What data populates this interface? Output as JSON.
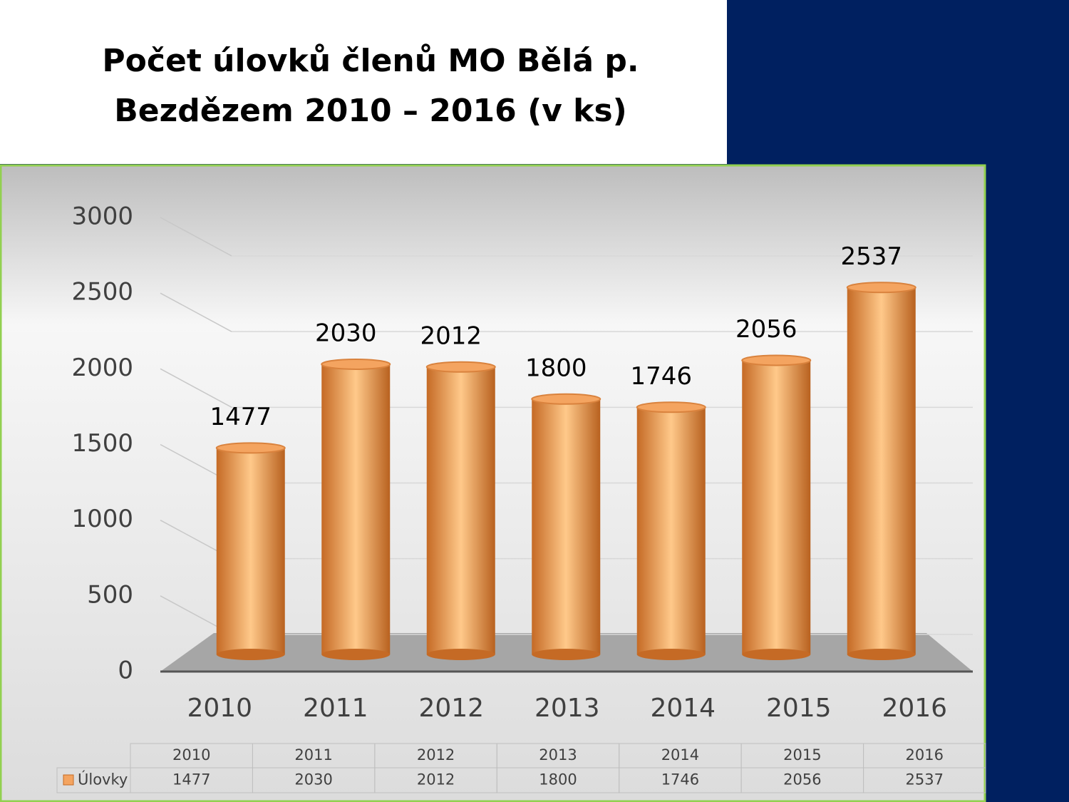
{
  "chart_data": {
    "type": "bar",
    "title": "Počet úlovků členů MO Bělá p. Bezdězem 2010 – 2016 (v ks)",
    "categories": [
      "2010",
      "2011",
      "2012",
      "2013",
      "2014",
      "2015",
      "2016"
    ],
    "series": [
      {
        "name": "Úlovky",
        "color": "#f4a460",
        "values": [
          1477,
          2030,
          2012,
          1800,
          1746,
          2056,
          2537
        ]
      }
    ],
    "ylim": [
      0,
      3000
    ],
    "yticks": [
      0,
      500,
      1000,
      1500,
      2000,
      2500,
      3000
    ],
    "grid": true,
    "data_table": true
  }
}
